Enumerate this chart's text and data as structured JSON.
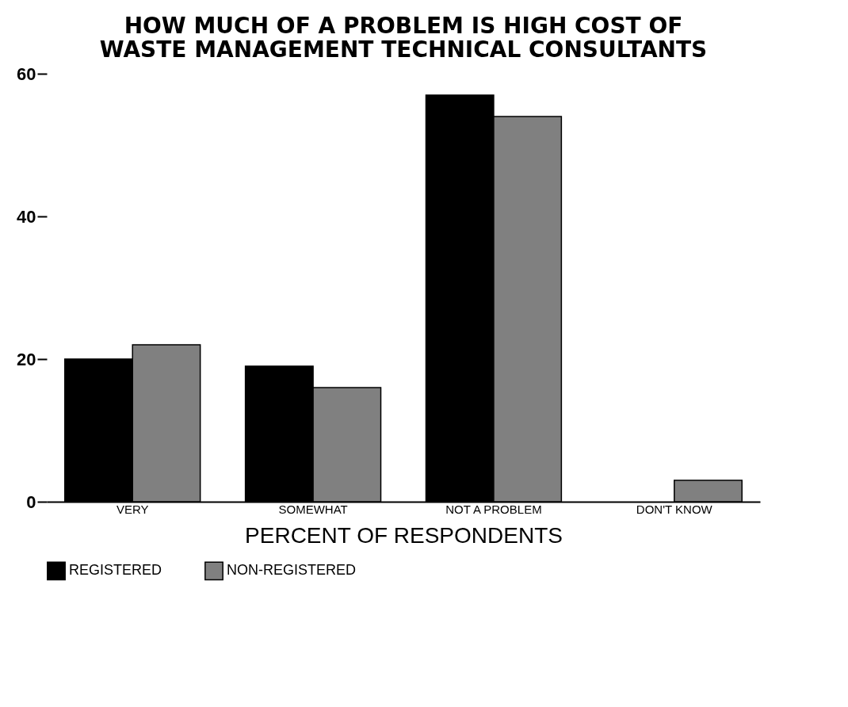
{
  "chart_data": {
    "type": "bar",
    "title": "HOW MUCH OF A PROBLEM IS HIGH COST OF WASTE MANAGEMENT TECHNICAL CONSULTANTS",
    "xlabel": "PERCENT OF RESPONDENTS",
    "categories": [
      "VERY",
      "SOMEWHAT",
      "NOT A PROBLEM",
      "DON'T KNOW"
    ],
    "series": [
      {
        "name": "REGISTERED",
        "color": "#000000",
        "values": [
          20,
          19,
          57,
          null
        ]
      },
      {
        "name": "NON-REGISTERED",
        "color": "#808080",
        "values": [
          22,
          16,
          54,
          3
        ]
      }
    ],
    "ylim": [
      0,
      60
    ],
    "yticks": [
      0,
      20,
      40,
      60
    ],
    "grid": false,
    "legend": "bottom"
  }
}
